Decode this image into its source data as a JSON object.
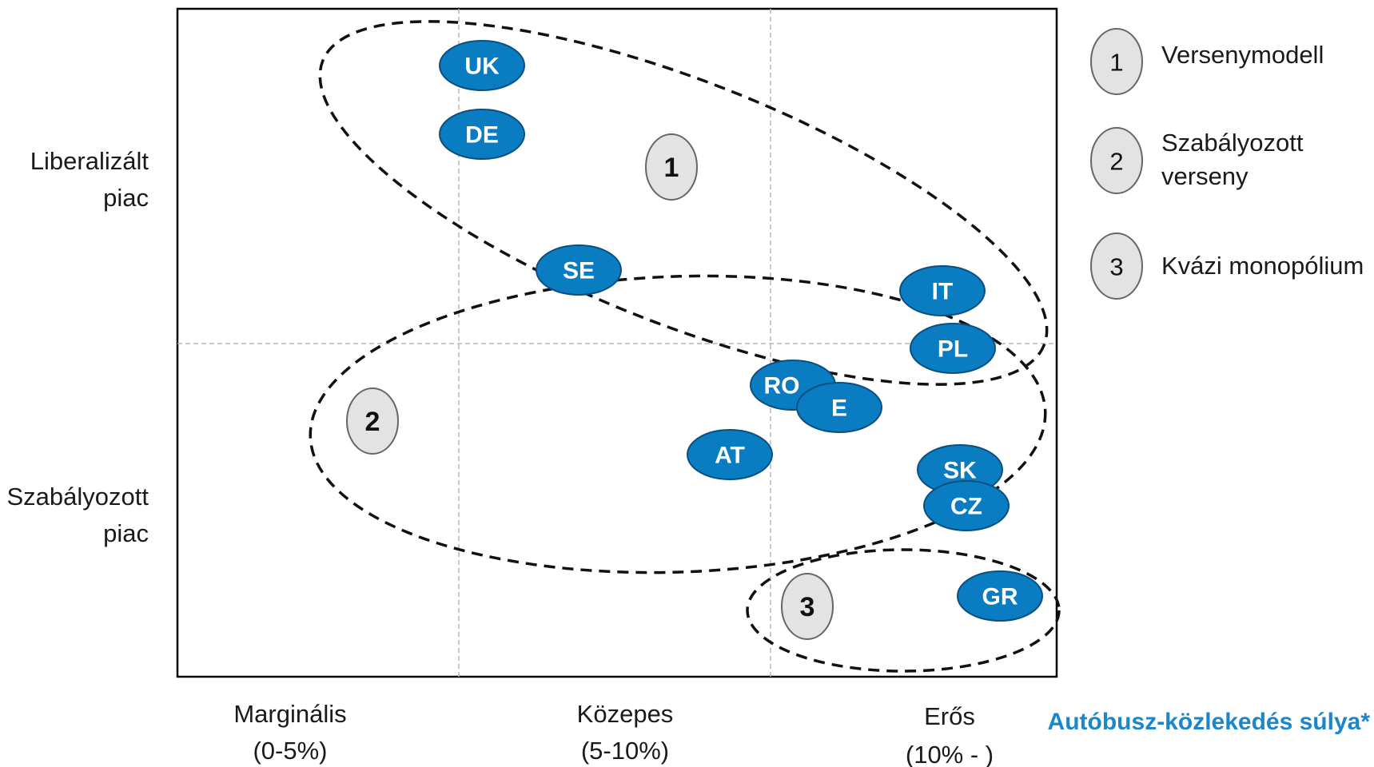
{
  "colors": {
    "country_fill": "#0a7cc1",
    "country_stroke": "#0b4f80",
    "group_fill": "#e3e3e3",
    "dashed_line": "#111111",
    "grid_line": "#b5b5b5",
    "axis_title": "#1b87c9"
  },
  "y_axis": {
    "top_label": [
      "Liberalizált",
      "piac"
    ],
    "bottom_label": [
      "Szabályozott",
      "piac"
    ]
  },
  "x_axis": {
    "title": "Autóbusz-közlekedés súlya*",
    "categories": [
      {
        "label": "Marginális",
        "range": "(0-5%)"
      },
      {
        "label": "Közepes",
        "range": "(5-10%)"
      },
      {
        "label": "Erős",
        "range": "(10% - )"
      }
    ]
  },
  "groups": [
    {
      "number": "1",
      "name": "Versenymodell",
      "name_lines": [
        "Versenymodell"
      ]
    },
    {
      "number": "2",
      "name": "Szabályozott verseny",
      "name_lines": [
        "Szabályozott",
        "verseny"
      ]
    },
    {
      "number": "3",
      "name": "Kvázi monopólium",
      "name_lines": [
        "Kvázi monopólium"
      ]
    }
  ],
  "countries": [
    "UK",
    "DE",
    "SE",
    "IT",
    "PL",
    "RO",
    "E",
    "AT",
    "SK",
    "CZ",
    "GR"
  ]
}
